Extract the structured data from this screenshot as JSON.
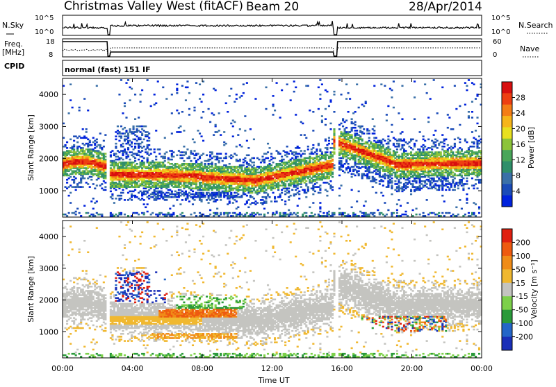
{
  "header": {
    "title": "Christmas Valley West (fitACF)",
    "beam": "Beam 20",
    "date": "28/Apr/2014"
  },
  "top_panels": {
    "nsky_label": "N.Sky",
    "nsky_ticks": [
      "10^5",
      "10^0"
    ],
    "nsearch_label": "N.Search",
    "nsearch_ticks": [
      "10^5",
      "10^0"
    ],
    "freq_label_1": "Freq.",
    "freq_label_2": "[MHz]",
    "freq_ticks": [
      "18",
      "8"
    ],
    "nave_label": "Nave",
    "nave_ticks": [
      "60",
      "0"
    ],
    "cpid_label": "CPID",
    "cpid_text": "normal (fast) 151 IF"
  },
  "chart_data": [
    {
      "type": "heatmap",
      "name": "power",
      "ylabel": "Slant Range [km]",
      "yticks": [
        "4000",
        "3000",
        "2000",
        "1000"
      ],
      "ylim": [
        180,
        4500
      ],
      "colorbar_label": "Power [dB]",
      "colorbar_ticks": [
        "28",
        "24",
        "20",
        "16",
        "12",
        "8",
        "4"
      ],
      "colorscale": [
        "#0022dd",
        "#1a4bb8",
        "#3a70a8",
        "#2f8f6a",
        "#49a65a",
        "#8cc43a",
        "#e8e020",
        "#f6b51a",
        "#f47d16",
        "#ee3f12",
        "#d80f0f"
      ]
    },
    {
      "type": "heatmap",
      "name": "velocity",
      "ylabel": "Slant Range [km]",
      "yticks": [
        "4000",
        "3000",
        "2000",
        "1000"
      ],
      "ylim": [
        180,
        4500
      ],
      "colorbar_label": "Velocity [m s⁻¹]",
      "colorbar_ticks": [
        "200",
        "100",
        "50",
        "15",
        "-15",
        "-50",
        "-100",
        "-200"
      ],
      "colorscale": [
        "#1a2fb8",
        "#2466c8",
        "#2a9a3a",
        "#7dd04a",
        "#c4c4c0",
        "#f0b830",
        "#f08c18",
        "#ee5a10",
        "#e02010"
      ]
    }
  ],
  "x_axis": {
    "label": "Time UT",
    "ticks": [
      "00:00",
      "04:00",
      "08:00",
      "12:00",
      "16:00",
      "20:00",
      "00:00"
    ],
    "range_hours": [
      0,
      24
    ]
  }
}
